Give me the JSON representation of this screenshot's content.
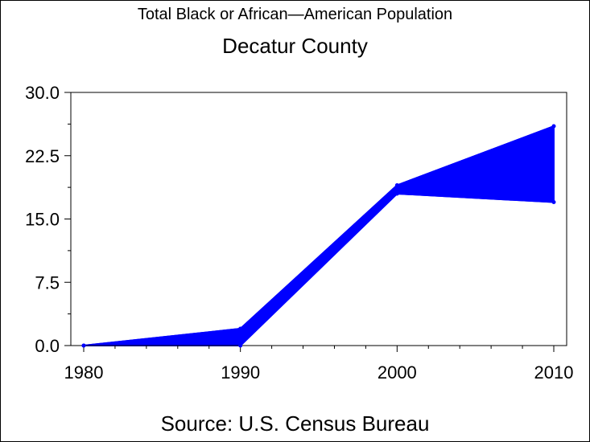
{
  "title": "Total Black or African—American Population",
  "subtitle": "Decatur County",
  "footnote": "Source: U.S. Census Bureau",
  "colors": {
    "series": "#0000ff",
    "axis": "#000000"
  },
  "chart_data": {
    "type": "area",
    "title": "Total Black or African—American Population",
    "subtitle": "Decatur County",
    "x": [
      1980,
      1990,
      2000,
      2010
    ],
    "series": [
      {
        "values": [
          0,
          2,
          19,
          26
        ]
      },
      {
        "values": [
          0,
          0,
          18,
          17
        ]
      }
    ],
    "xticks": [
      "1980",
      "1990",
      "2000",
      "2010"
    ],
    "yticks": [
      "0.0",
      "7.5",
      "15.0",
      "22.5",
      "30.0"
    ],
    "xlim": [
      1980,
      2010
    ],
    "ylim": [
      0,
      30
    ],
    "grid": false,
    "legend": "none"
  }
}
